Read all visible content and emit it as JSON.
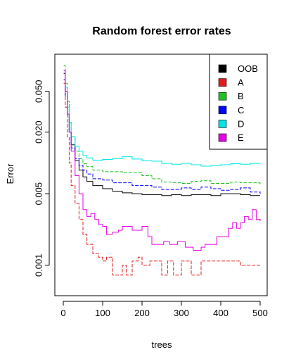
{
  "chart_data": {
    "type": "line",
    "title": "Random forest error rates",
    "xlabel": "trees",
    "ylabel": "Error",
    "xlim": [
      0,
      500
    ],
    "ylim": [
      0.0006,
      0.1
    ],
    "y_scale": "log",
    "grid": false,
    "legend_placement": "top-right",
    "x_ticks": [
      {
        "value": 0,
        "label": "0"
      },
      {
        "value": 100,
        "label": "100"
      },
      {
        "value": 200,
        "label": "200"
      },
      {
        "value": 300,
        "label": "300"
      },
      {
        "value": 400,
        "label": "400"
      },
      {
        "value": 500,
        "label": "500"
      }
    ],
    "y_ticks": [
      {
        "value": 0.001,
        "label": "0.001"
      },
      {
        "value": 0.005,
        "label": "0.005"
      },
      {
        "value": 0.02,
        "label": "0.020"
      },
      {
        "value": 0.05,
        "label": "0.050"
      }
    ],
    "series": [
      {
        "name": "OOB",
        "color": "#000000",
        "dash": "solid",
        "x": [
          1,
          5,
          10,
          15,
          20,
          30,
          40,
          50,
          60,
          75,
          100,
          125,
          150,
          175,
          200,
          225,
          250,
          275,
          300,
          325,
          350,
          375,
          400,
          425,
          450,
          475,
          500
        ],
        "y": [
          0.075,
          0.05,
          0.03,
          0.02,
          0.015,
          0.0105,
          0.0085,
          0.0073,
          0.0066,
          0.006,
          0.0056,
          0.0053,
          0.0051,
          0.005,
          0.0049,
          0.0049,
          0.0048,
          0.0049,
          0.0048,
          0.0049,
          0.0049,
          0.0048,
          0.005,
          0.005,
          0.0049,
          0.0048,
          0.0048
        ]
      },
      {
        "name": "A",
        "color": "#e31a1c",
        "dash": "dashed",
        "x": [
          1,
          5,
          10,
          15,
          20,
          30,
          40,
          50,
          60,
          75,
          90,
          100,
          110,
          125,
          140,
          150,
          160,
          175,
          190,
          200,
          220,
          235,
          250,
          265,
          280,
          300,
          325,
          350,
          375,
          400,
          425,
          450,
          475,
          500
        ],
        "y": [
          0.06,
          0.035,
          0.018,
          0.01,
          0.006,
          0.004,
          0.0028,
          0.002,
          0.0016,
          0.0013,
          0.0012,
          0.0011,
          0.0012,
          0.0008,
          0.0008,
          0.001,
          0.0008,
          0.0011,
          0.0012,
          0.001,
          0.0011,
          0.0011,
          0.0008,
          0.0011,
          0.0008,
          0.0011,
          0.0008,
          0.0011,
          0.0011,
          0.0011,
          0.0011,
          0.001,
          0.001,
          0.001
        ]
      },
      {
        "name": "B",
        "color": "#22c022",
        "dash": "dashed",
        "x": [
          1,
          5,
          10,
          15,
          20,
          30,
          40,
          50,
          60,
          75,
          100,
          125,
          150,
          175,
          200,
          225,
          250,
          275,
          300,
          325,
          350,
          375,
          400,
          425,
          450,
          475,
          500
        ],
        "y": [
          0.09,
          0.06,
          0.04,
          0.025,
          0.018,
          0.013,
          0.011,
          0.0098,
          0.0092,
          0.0085,
          0.0082,
          0.0082,
          0.008,
          0.008,
          0.0075,
          0.007,
          0.0065,
          0.0064,
          0.0063,
          0.0066,
          0.0067,
          0.0063,
          0.0063,
          0.0065,
          0.0064,
          0.0064,
          0.0062
        ]
      },
      {
        "name": "C",
        "color": "#0000ff",
        "dash": "dashed",
        "x": [
          1,
          5,
          10,
          15,
          20,
          30,
          40,
          50,
          60,
          75,
          100,
          125,
          150,
          175,
          200,
          225,
          250,
          275,
          300,
          325,
          350,
          375,
          400,
          425,
          450,
          475,
          500
        ],
        "y": [
          0.065,
          0.045,
          0.03,
          0.02,
          0.014,
          0.011,
          0.0095,
          0.0085,
          0.0078,
          0.007,
          0.0068,
          0.0064,
          0.0064,
          0.006,
          0.006,
          0.0058,
          0.0055,
          0.0055,
          0.0057,
          0.0055,
          0.0058,
          0.0056,
          0.0054,
          0.0055,
          0.0057,
          0.0052,
          0.005
        ]
      },
      {
        "name": "D",
        "color": "#00e5e5",
        "dash": "solid",
        "x": [
          1,
          5,
          10,
          15,
          20,
          30,
          40,
          50,
          60,
          75,
          100,
          125,
          150,
          175,
          200,
          225,
          250,
          275,
          300,
          325,
          350,
          375,
          400,
          425,
          450,
          475,
          500
        ],
        "y": [
          0.08,
          0.055,
          0.035,
          0.025,
          0.018,
          0.0145,
          0.013,
          0.0118,
          0.0112,
          0.0106,
          0.0108,
          0.011,
          0.0115,
          0.0109,
          0.0105,
          0.0104,
          0.0099,
          0.0097,
          0.0099,
          0.0096,
          0.0093,
          0.0094,
          0.0096,
          0.0098,
          0.0097,
          0.0099,
          0.0098
        ]
      },
      {
        "name": "E",
        "color": "#e600e6",
        "dash": "solid",
        "x": [
          1,
          5,
          10,
          15,
          20,
          30,
          40,
          50,
          60,
          70,
          80,
          90,
          100,
          110,
          125,
          140,
          150,
          175,
          190,
          200,
          215,
          225,
          240,
          255,
          270,
          290,
          310,
          330,
          350,
          360,
          375,
          390,
          400,
          410,
          420,
          430,
          440,
          450,
          460,
          470,
          480,
          490,
          500
        ],
        "y": [
          0.08,
          0.05,
          0.03,
          0.02,
          0.013,
          0.0075,
          0.005,
          0.0035,
          0.003,
          0.0032,
          0.0028,
          0.0025,
          0.0024,
          0.002,
          0.0021,
          0.0022,
          0.0024,
          0.0022,
          0.0022,
          0.0024,
          0.0019,
          0.0016,
          0.0016,
          0.0017,
          0.0016,
          0.0017,
          0.0015,
          0.0014,
          0.0015,
          0.0016,
          0.0016,
          0.0019,
          0.0019,
          0.0019,
          0.0023,
          0.0026,
          0.0023,
          0.0026,
          0.003,
          0.0028,
          0.0035,
          0.0028,
          0.0027
        ]
      }
    ]
  }
}
